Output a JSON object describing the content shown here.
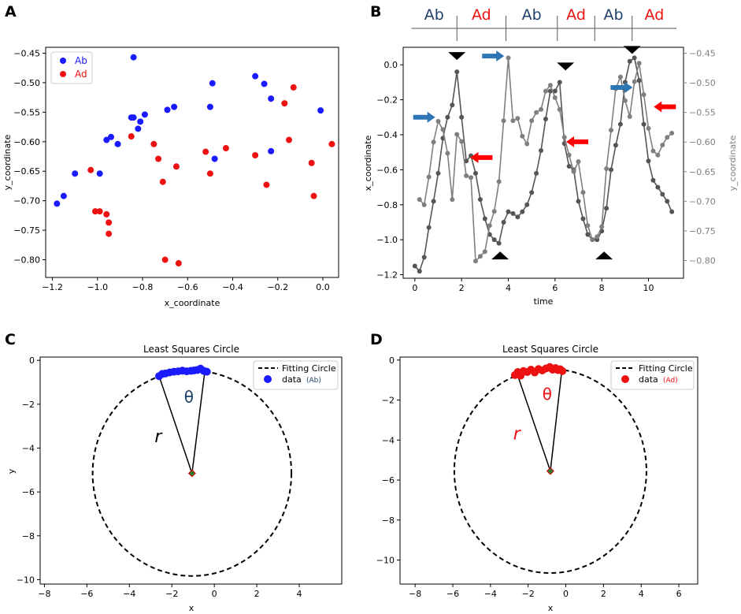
{
  "panels": {
    "a": "A",
    "b": "B",
    "c": "C",
    "d": "D"
  },
  "colors": {
    "ab": "#1a1aff",
    "ad": "#ee1111",
    "dark_blue": "#1f3f6b",
    "gray_line": "#7f7f7f",
    "dark_line": "#555555",
    "arrow_blue": "#2e75b6",
    "arrow_red": "#ff0000",
    "center": "#2e7d32"
  },
  "chart_data": [
    {
      "id": "A",
      "type": "scatter",
      "title": "",
      "xlabel": "x_coordinate",
      "ylabel": "y_coordinate",
      "xlim": [
        -1.23,
        0.07
      ],
      "ylim": [
        -0.83,
        -0.44
      ],
      "xticks": [
        -1.2,
        -1.0,
        -0.8,
        -0.6,
        -0.4,
        -0.2,
        0.0
      ],
      "xtick_labels": [
        "−1.2",
        "−1.0",
        "−0.8",
        "−0.6",
        "−0.4",
        "−0.2",
        "0.0"
      ],
      "yticks": [
        -0.45,
        -0.5,
        -0.55,
        -0.6,
        -0.65,
        -0.7,
        -0.75,
        -0.8
      ],
      "ytick_labels": [
        "−0.45",
        "−0.50",
        "−0.55",
        "−0.60",
        "−0.65",
        "−0.70",
        "−0.75",
        "−0.80"
      ],
      "legend": {
        "position": "top-left",
        "entries": [
          "Ab",
          "Ad"
        ]
      },
      "series": [
        {
          "name": "Ab",
          "points": [
            [
              -1.18,
              -0.705
            ],
            [
              -1.15,
              -0.692
            ],
            [
              -1.1,
              -0.654
            ],
            [
              -0.99,
              -0.654
            ],
            [
              -0.96,
              -0.597
            ],
            [
              -0.94,
              -0.592
            ],
            [
              -0.91,
              -0.604
            ],
            [
              -0.85,
              -0.559
            ],
            [
              -0.84,
              -0.559
            ],
            [
              -0.82,
              -0.578
            ],
            [
              -0.81,
              -0.566
            ],
            [
              -0.79,
              -0.554
            ],
            [
              -0.84,
              -0.457
            ],
            [
              -0.69,
              -0.546
            ],
            [
              -0.66,
              -0.541
            ],
            [
              -0.5,
              -0.541
            ],
            [
              -0.49,
              -0.501
            ],
            [
              -0.48,
              -0.629
            ],
            [
              -0.3,
              -0.489
            ],
            [
              -0.26,
              -0.502
            ],
            [
              -0.23,
              -0.527
            ],
            [
              -0.23,
              -0.616
            ],
            [
              -0.01,
              -0.547
            ]
          ]
        },
        {
          "name": "Ad",
          "points": [
            [
              -1.03,
              -0.648
            ],
            [
              -1.01,
              -0.718
            ],
            [
              -0.99,
              -0.718
            ],
            [
              -0.96,
              -0.723
            ],
            [
              -0.95,
              -0.737
            ],
            [
              -0.95,
              -0.756
            ],
            [
              -0.85,
              -0.591
            ],
            [
              -0.75,
              -0.604
            ],
            [
              -0.73,
              -0.629
            ],
            [
              -0.71,
              -0.668
            ],
            [
              -0.7,
              -0.8
            ],
            [
              -0.65,
              -0.642
            ],
            [
              -0.64,
              -0.806
            ],
            [
              -0.52,
              -0.617
            ],
            [
              -0.5,
              -0.654
            ],
            [
              -0.43,
              -0.611
            ],
            [
              -0.3,
              -0.623
            ],
            [
              -0.25,
              -0.673
            ],
            [
              -0.17,
              -0.535
            ],
            [
              -0.15,
              -0.597
            ],
            [
              -0.13,
              -0.508
            ],
            [
              -0.05,
              -0.636
            ],
            [
              -0.04,
              -0.692
            ],
            [
              0.04,
              -0.604
            ]
          ]
        }
      ]
    },
    {
      "id": "B",
      "type": "line",
      "xlabel": "time",
      "ylabel": "x_coordinate",
      "ylabel_right": "y_coordinate",
      "xlim": [
        -0.5,
        11.5
      ],
      "ylim": [
        -1.22,
        0.1
      ],
      "ylim_right": [
        -0.83,
        -0.44
      ],
      "xticks": [
        0,
        2,
        4,
        6,
        8,
        10
      ],
      "xtick_labels": [
        "0",
        "2",
        "4",
        "6",
        "8",
        "10"
      ],
      "yticks": [
        0.0,
        -0.2,
        -0.4,
        -0.6,
        -0.8,
        -1.0,
        -1.2
      ],
      "ytick_labels": [
        "0.0",
        "−0.2",
        "−0.4",
        "−0.6",
        "−0.8",
        "−1.0",
        "−1.2"
      ],
      "yticks_right": [
        -0.45,
        -0.5,
        -0.55,
        -0.6,
        -0.65,
        -0.7,
        -0.75,
        -0.8
      ],
      "ytick_labels_right": [
        "−0.45",
        "−0.50",
        "−0.55",
        "−0.60",
        "−0.65",
        "−0.70",
        "−0.75",
        "−0.80"
      ],
      "segments": [
        {
          "label": "Ab",
          "start": -0.15,
          "end": 1.8,
          "color": "dark_blue"
        },
        {
          "label": "Ad",
          "start": 1.8,
          "end": 3.9,
          "color": "ad"
        },
        {
          "label": "Ab",
          "start": 3.9,
          "end": 6.1,
          "color": "dark_blue"
        },
        {
          "label": "Ad",
          "start": 6.1,
          "end": 7.7,
          "color": "ad"
        },
        {
          "label": "Ab",
          "start": 7.7,
          "end": 9.3,
          "color": "dark_blue"
        },
        {
          "label": "Ad",
          "start": 9.3,
          "end": 11.2,
          "color": "ad"
        }
      ],
      "series": [
        {
          "name": "x_coordinate",
          "axis": "left",
          "color": "dark_line",
          "x": [
            0,
            0.2,
            0.4,
            0.6,
            0.8,
            1.0,
            1.2,
            1.4,
            1.6,
            1.8,
            2.0,
            2.2,
            2.4,
            2.6,
            2.8,
            3.0,
            3.2,
            3.4,
            3.6,
            3.8,
            4.0,
            4.2,
            4.4,
            4.6,
            4.8,
            5.0,
            5.2,
            5.4,
            5.6,
            5.8,
            6.0,
            6.2,
            6.4,
            6.6,
            6.8,
            7.0,
            7.2,
            7.4,
            7.6,
            7.8,
            8.0,
            8.2,
            8.4,
            8.6,
            8.8,
            9.0,
            9.2,
            9.4,
            9.6,
            9.8,
            10.0,
            10.2,
            10.4,
            10.6,
            10.8,
            11.0
          ],
          "y": [
            -1.15,
            -1.18,
            -1.1,
            -0.93,
            -0.78,
            -0.62,
            -0.42,
            -0.3,
            -0.23,
            -0.04,
            -0.3,
            -0.55,
            -0.52,
            -0.62,
            -0.77,
            -0.88,
            -0.97,
            -1.0,
            -1.02,
            -0.9,
            -0.84,
            -0.85,
            -0.87,
            -0.84,
            -0.8,
            -0.73,
            -0.62,
            -0.49,
            -0.31,
            -0.15,
            -0.15,
            -0.1,
            -0.45,
            -0.58,
            -0.6,
            -0.78,
            -0.88,
            -0.97,
            -1.0,
            -1.0,
            -0.95,
            -0.82,
            -0.6,
            -0.46,
            -0.34,
            -0.1,
            0.02,
            0.04,
            -0.09,
            -0.34,
            -0.55,
            -0.66,
            -0.7,
            -0.74,
            -0.78,
            -0.84
          ]
        },
        {
          "name": "y_coordinate",
          "axis": "right",
          "color": "gray_line",
          "x": [
            0.2,
            0.4,
            0.6,
            0.8,
            1.0,
            1.2,
            1.4,
            1.6,
            1.8,
            2.0,
            2.2,
            2.4,
            2.6,
            2.8,
            3.0,
            3.2,
            3.4,
            3.6,
            3.8,
            4.0,
            4.2,
            4.4,
            4.6,
            4.8,
            5.0,
            5.2,
            5.4,
            5.6,
            5.8,
            6.0,
            6.2,
            6.4,
            6.6,
            6.8,
            7.0,
            7.2,
            7.4,
            7.6,
            7.8,
            8.0,
            8.2,
            8.4,
            8.6,
            8.8,
            9.0,
            9.2,
            9.4,
            9.6,
            9.8,
            10.0,
            10.2,
            10.4,
            10.6,
            10.8,
            11.0
          ],
          "y": [
            -0.697,
            -0.706,
            -0.659,
            -0.6,
            -0.565,
            -0.579,
            -0.619,
            -0.697,
            -0.587,
            -0.599,
            -0.657,
            -0.66,
            -0.801,
            -0.793,
            -0.785,
            -0.741,
            -0.717,
            -0.667,
            -0.564,
            -0.458,
            -0.564,
            -0.56,
            -0.59,
            -0.603,
            -0.564,
            -0.55,
            -0.545,
            -0.514,
            -0.504,
            -0.525,
            -0.545,
            -0.592,
            -0.622,
            -0.65,
            -0.633,
            -0.685,
            -0.741,
            -0.765,
            -0.76,
            -0.743,
            -0.645,
            -0.58,
            -0.51,
            -0.49,
            -0.53,
            -0.557,
            -0.498,
            -0.467,
            -0.52,
            -0.577,
            -0.615,
            -0.622,
            -0.605,
            -0.592,
            -0.585
          ]
        }
      ],
      "arrows": [
        {
          "dir": "right",
          "color": "arrow_blue",
          "t": 0.4,
          "v": -0.3
        },
        {
          "dir": "left",
          "color": "arrow_red",
          "t": 2.85,
          "v": -0.53
        },
        {
          "dir": "right",
          "color": "arrow_blue",
          "t": 3.35,
          "v": 0.05
        },
        {
          "dir": "left",
          "color": "arrow_red",
          "t": 6.95,
          "v": -0.44
        },
        {
          "dir": "right",
          "color": "arrow_blue",
          "t": 8.85,
          "v": -0.13
        },
        {
          "dir": "left",
          "color": "arrow_red",
          "t": 10.7,
          "v": -0.24
        }
      ],
      "markers": [
        {
          "dir": "down",
          "t": 1.8,
          "v": 0.05
        },
        {
          "dir": "up",
          "t": 3.65,
          "v": -1.09
        },
        {
          "dir": "down",
          "t": 6.45,
          "v": -0.01
        },
        {
          "dir": "up",
          "t": 8.1,
          "v": -1.09
        },
        {
          "dir": "down",
          "t": 9.3,
          "v": 0.085
        }
      ]
    },
    {
      "id": "C",
      "type": "scatter",
      "title": "Least Squares Circle",
      "xlabel": "x",
      "ylabel": "y",
      "xlim": [
        -8.2,
        6.0
      ],
      "ylim": [
        -10.2,
        0.15
      ],
      "xticks": [
        -8,
        -6,
        -4,
        -2,
        0,
        2,
        4
      ],
      "xtick_labels": [
        "−8",
        "−6",
        "−4",
        "−2",
        "0",
        "2",
        "4"
      ],
      "yticks": [
        0,
        -2,
        -4,
        -6,
        -8,
        -10
      ],
      "ytick_labels": [
        "0",
        "−2",
        "−4",
        "−6",
        "−8",
        "−10"
      ],
      "circle": {
        "cx": -1.05,
        "cy": -5.15,
        "r": 4.68
      },
      "angle_label": "θ",
      "radius_label": "r",
      "legend": {
        "position": "top-right",
        "circle_label": "Fitting Circle",
        "data_label": "data",
        "data_tag": "(Ab)"
      },
      "data_series": "Ab",
      "points": [
        [
          -2.6,
          -0.72
        ],
        [
          -2.45,
          -0.62
        ],
        [
          -2.3,
          -0.6
        ],
        [
          -2.1,
          -0.55
        ],
        [
          -1.9,
          -0.52
        ],
        [
          -1.7,
          -0.5
        ],
        [
          -1.5,
          -0.47
        ],
        [
          -1.3,
          -0.5
        ],
        [
          -1.1,
          -0.48
        ],
        [
          -0.95,
          -0.46
        ],
        [
          -0.8,
          -0.44
        ],
        [
          -0.65,
          -0.38
        ],
        [
          -0.5,
          -0.48
        ],
        [
          -0.35,
          -0.52
        ]
      ],
      "rays_to": [
        [
          -2.6,
          -0.72
        ],
        [
          -0.45,
          -0.52
        ]
      ]
    },
    {
      "id": "D",
      "type": "scatter",
      "title": "Least Squares Circle",
      "xlabel": "x",
      "ylabel": "",
      "xlim": [
        -8.8,
        7.0
      ],
      "ylim": [
        -11.2,
        0.15
      ],
      "xticks": [
        -8,
        -6,
        -4,
        -2,
        0,
        2,
        4,
        6
      ],
      "xtick_labels": [
        "−8",
        "−6",
        "−4",
        "−2",
        "0",
        "2",
        "4",
        "6"
      ],
      "yticks": [
        0,
        -2,
        -4,
        -6,
        -8,
        -10
      ],
      "ytick_labels": [
        "0",
        "−2",
        "−4",
        "−6",
        "−8",
        "−10"
      ],
      "circle": {
        "cx": -0.82,
        "cy": -5.55,
        "r": 5.1
      },
      "angle_label": "θ",
      "radius_label": "r",
      "legend": {
        "position": "top-right",
        "circle_label": "Fitting Circle",
        "data_label": "data",
        "data_tag": "(Ad)"
      },
      "data_series": "Ad",
      "points": [
        [
          -2.7,
          -0.75
        ],
        [
          -2.55,
          -0.6
        ],
        [
          -2.4,
          -0.78
        ],
        [
          -2.25,
          -0.55
        ],
        [
          -2.05,
          -0.6
        ],
        [
          -1.85,
          -0.48
        ],
        [
          -1.65,
          -0.62
        ],
        [
          -1.45,
          -0.45
        ],
        [
          -1.25,
          -0.52
        ],
        [
          -1.05,
          -0.42
        ],
        [
          -0.85,
          -0.35
        ],
        [
          -0.7,
          -0.48
        ],
        [
          -0.55,
          -0.4
        ],
        [
          -0.42,
          -0.5
        ],
        [
          -0.3,
          -0.46
        ],
        [
          -0.18,
          -0.55
        ]
      ],
      "rays_to": [
        [
          -2.55,
          -0.78
        ],
        [
          -0.22,
          -0.58
        ]
      ]
    }
  ]
}
